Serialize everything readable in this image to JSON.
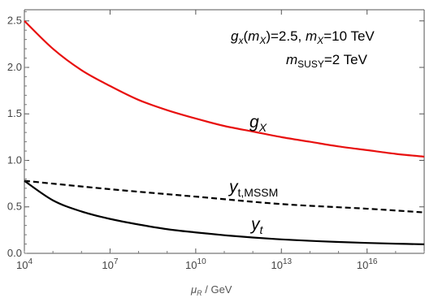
{
  "chart_data": {
    "type": "line",
    "title": "",
    "xlabel": {
      "symbol": "μ",
      "subscript": "R",
      "unit": " / GeV"
    },
    "ylabel": "",
    "x_scale": "log10",
    "xlim": [
      10000,
      1e+18
    ],
    "ylim": [
      0,
      2.62
    ],
    "x_ticks": [
      {
        "value": 10000,
        "base": "10",
        "exp": "4"
      },
      {
        "value": 10000000,
        "base": "10",
        "exp": "7"
      },
      {
        "value": 10000000000,
        "base": "10",
        "exp": "10"
      },
      {
        "value": 10000000000000,
        "base": "10",
        "exp": "13"
      },
      {
        "value": 10000000000000000,
        "base": "10",
        "exp": "16"
      }
    ],
    "y_ticks": [
      "0.0",
      "0.5",
      "1.0",
      "1.5",
      "2.0",
      "2.5"
    ],
    "grid": false,
    "legend": "none",
    "annotations": {
      "line1": {
        "g": "g",
        "gsub": "x",
        "open": "(",
        "m": "m",
        "msub": "X",
        "close": ")=2.5, ",
        "m2": "m",
        "m2sub": "X",
        "tail": "=10 TeV"
      },
      "line2": {
        "m": "m",
        "msub": "SUSY",
        "tail": "=2 TeV"
      }
    },
    "series": [
      {
        "name": {
          "base": "g",
          "sub": "X"
        },
        "color": "#e8100f",
        "dash": "solid",
        "x": [
          10000,
          100000,
          1000000,
          10000000,
          100000000,
          1000000000,
          10000000000,
          100000000000,
          1000000000000,
          10000000000000,
          100000000000000,
          1000000000000000,
          10000000000000000,
          100000000000000000,
          1000000000000000000
        ],
        "values": [
          2.5,
          2.2,
          1.97,
          1.8,
          1.65,
          1.54,
          1.45,
          1.37,
          1.31,
          1.25,
          1.2,
          1.15,
          1.11,
          1.07,
          1.04
        ]
      },
      {
        "name": {
          "base": "y",
          "sub": "t,MSSM"
        },
        "color": "#000000",
        "dash": "dashed",
        "x": [
          10000,
          10000000,
          10000000000,
          10000000000000,
          10000000000000000,
          1000000000000000000
        ],
        "values": [
          0.78,
          0.69,
          0.61,
          0.53,
          0.48,
          0.44
        ]
      },
      {
        "name": {
          "base": "y",
          "sub": "t"
        },
        "color": "#000000",
        "dash": "solid",
        "x": [
          10000,
          100000,
          1000000,
          10000000,
          100000000,
          1000000000,
          10000000000,
          100000000000,
          1000000000000,
          10000000000000,
          100000000000000,
          1000000000000000,
          10000000000000000,
          100000000000000000,
          1000000000000000000
        ],
        "values": [
          0.78,
          0.57,
          0.45,
          0.37,
          0.31,
          0.26,
          0.225,
          0.195,
          0.17,
          0.15,
          0.135,
          0.122,
          0.112,
          0.104,
          0.097
        ]
      }
    ]
  }
}
